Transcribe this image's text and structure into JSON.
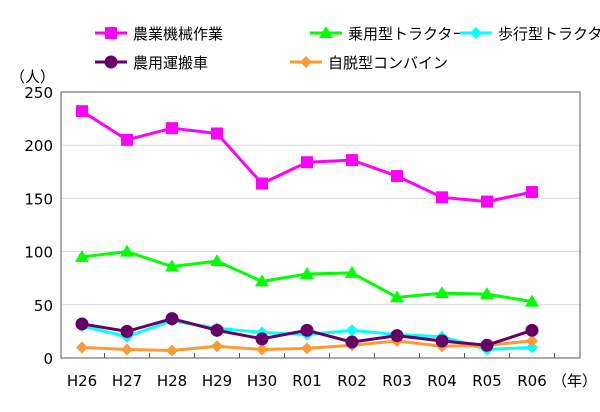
{
  "chart_data": {
    "type": "line",
    "ylabel": "（人）",
    "xlabel": "（年）",
    "ylim": [
      0,
      250
    ],
    "yticks": [
      0,
      50,
      100,
      150,
      200,
      250
    ],
    "grid": true,
    "legend_position": "top",
    "categories": [
      "H26",
      "H27",
      "H28",
      "H29",
      "H30",
      "R01",
      "R02",
      "R03",
      "R04",
      "R05",
      "R06"
    ],
    "series": [
      {
        "name": "農業機械作業",
        "color": "#ff00ff",
        "marker": "square",
        "values": [
          232,
          205,
          216,
          211,
          164,
          184,
          186,
          171,
          151,
          147,
          156
        ]
      },
      {
        "name": "乗用型トラクター",
        "color": "#00ff00",
        "marker": "triangle",
        "values": [
          95,
          100,
          86,
          91,
          72,
          79,
          80,
          57,
          61,
          60,
          53
        ]
      },
      {
        "name": "歩行型トラクター",
        "color": "#00ffff",
        "marker": "diamond",
        "values": [
          30,
          20,
          35,
          28,
          24,
          22,
          26,
          22,
          20,
          8,
          10
        ]
      },
      {
        "name": "農用運搬車",
        "color": "#660066",
        "marker": "circle",
        "values": [
          32,
          25,
          37,
          26,
          18,
          26,
          15,
          21,
          16,
          12,
          26
        ]
      },
      {
        "name": "自脱型コンバイン",
        "color": "#ff9933",
        "marker": "diamond",
        "values": [
          10,
          8,
          7,
          11,
          8,
          9,
          12,
          16,
          11,
          12,
          16
        ]
      }
    ]
  }
}
